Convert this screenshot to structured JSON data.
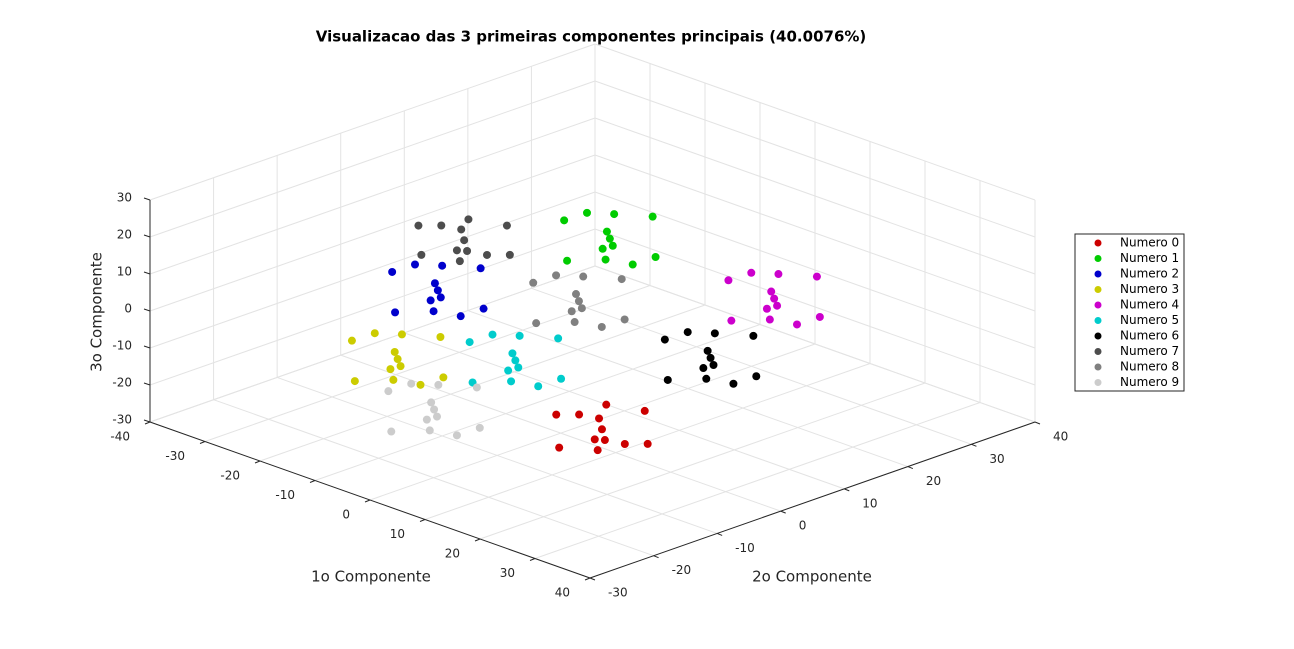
{
  "chart_data": {
    "type": "scatter3d",
    "title": "Visualizacao das 3 primeiras componentes principais (40.0076%)",
    "x_label": "1o Componente",
    "y_label": "2o Componente",
    "z_label": "3o Componente",
    "xlim": [
      -40,
      40
    ],
    "ylim": [
      -30,
      40
    ],
    "zlim": [
      -30,
      30
    ],
    "xticks": [
      -40,
      -30,
      -20,
      -10,
      0,
      10,
      20,
      30,
      40
    ],
    "yticks": [
      -30,
      -20,
      -10,
      0,
      10,
      20,
      30,
      40
    ],
    "zticks": [
      -30,
      -20,
      -10,
      0,
      10,
      20,
      30
    ],
    "grid": true,
    "legend": "right",
    "series": [
      {
        "name": "Numero 0",
        "color": "#cc0000",
        "x": [
          7.5,
          11.5,
          3.5,
          13.5,
          1.5,
          9.5,
          5.5,
          12.5,
          2.5,
          10.5,
          4.5,
          8.5
        ],
        "y": [
          0,
          -3,
          3,
          2,
          -2,
          5,
          -5,
          -5,
          5,
          1,
          -1,
          -2
        ],
        "z": [
          -25,
          -24,
          -26,
          -27,
          -23,
          -22,
          -28,
          -25,
          -24,
          -28,
          -22,
          -26
        ]
      },
      {
        "name": "Numero 1",
        "color": "#00cc00",
        "x": [
          2,
          6,
          -2,
          8,
          -4,
          4,
          0,
          7,
          -3,
          5,
          -1,
          3
        ],
        "y": [
          6,
          3,
          9,
          8,
          4,
          11,
          1,
          1,
          11,
          7,
          5,
          4
        ],
        "z": [
          20,
          22,
          18,
          17,
          23,
          24,
          16,
          20,
          21,
          14,
          26,
          19
        ]
      },
      {
        "name": "Numero 2",
        "color": "#0000cc",
        "x": [
          -5,
          -1,
          -9,
          1,
          -11,
          -3,
          -7,
          0,
          -10,
          -2,
          -8,
          -4
        ],
        "y": [
          -15,
          -18,
          -12,
          -13,
          -17,
          -10,
          -20,
          -20,
          -10,
          -14,
          -16,
          -17
        ],
        "z": [
          15,
          17,
          13,
          12,
          18,
          19,
          11,
          15,
          16,
          9,
          21,
          14
        ]
      },
      {
        "name": "Numero 3",
        "color": "#cccc00",
        "x": [
          -10,
          -6,
          -14,
          -4,
          -16,
          -8,
          -12,
          -5,
          -15,
          -7,
          -13,
          -9
        ],
        "y": [
          -17,
          -20,
          -14,
          -15,
          -19,
          -12,
          -22,
          -22,
          -12,
          -16,
          -18,
          -19
        ],
        "z": [
          -5,
          -3,
          -7,
          -8,
          -2,
          -1,
          -9,
          -5,
          -4,
          -11,
          1,
          -6
        ]
      },
      {
        "name": "Numero 4",
        "color": "#cc00cc",
        "x": [
          18,
          22,
          14,
          24,
          12,
          20,
          16,
          23,
          13,
          21,
          15,
          19
        ],
        "y": [
          18,
          15,
          21,
          20,
          16,
          23,
          13,
          13,
          23,
          19,
          17,
          16
        ],
        "z": [
          5,
          7,
          3,
          2,
          8,
          9,
          1,
          5,
          6,
          -1,
          11,
          4
        ]
      },
      {
        "name": "Numero 5",
        "color": "#00cccc",
        "x": [
          1,
          5,
          -3,
          7,
          -5,
          3,
          -1,
          6,
          -4,
          4,
          -2,
          2
        ],
        "y": [
          -8,
          -11,
          -5,
          -6,
          -10,
          -3,
          -13,
          -13,
          -3,
          -7,
          -9,
          -10
        ],
        "z": [
          -5,
          -3,
          -7,
          -8,
          -2,
          -1,
          -9,
          -5,
          -4,
          -11,
          1,
          -6
        ]
      },
      {
        "name": "Numero 6",
        "color": "#000000",
        "x": [
          18,
          22,
          14,
          24,
          12,
          20,
          16,
          23,
          13,
          21,
          15,
          19
        ],
        "y": [
          8,
          5,
          11,
          10,
          6,
          13,
          3,
          3,
          13,
          9,
          7,
          6
        ],
        "z": [
          -5,
          -3,
          -7,
          -8,
          -2,
          -1,
          -9,
          -5,
          -4,
          -11,
          1,
          -6
        ]
      },
      {
        "name": "Numero 7",
        "color": "#4d4d4d",
        "x": [
          -6,
          -2,
          -10,
          0,
          -12,
          -4,
          -8,
          -1,
          -11,
          -3,
          -9,
          -5
        ],
        "y": [
          -10,
          -13,
          -7,
          -8,
          -12,
          -5,
          -15,
          -15,
          -5,
          -9,
          -11,
          -12
        ],
        "z": [
          25,
          26,
          24,
          23,
          27,
          27,
          23,
          25,
          25,
          22,
          28,
          24
        ]
      },
      {
        "name": "Numero 8",
        "color": "#808080",
        "x": [
          1,
          5,
          -3,
          7,
          -5,
          3,
          -1,
          6,
          -4,
          4,
          -2,
          2
        ],
        "y": [
          2,
          -1,
          5,
          4,
          0,
          7,
          -3,
          -3,
          7,
          3,
          1,
          0
        ],
        "z": [
          5,
          7,
          3,
          2,
          8,
          9,
          1,
          5,
          6,
          -1,
          11,
          4
        ]
      },
      {
        "name": "Numero 9",
        "color": "#cccccc",
        "x": [
          -8,
          -4,
          -12,
          -2,
          -14,
          -6,
          -10,
          -3,
          -13,
          -5,
          -11,
          -7
        ],
        "y": [
          -13,
          -16,
          -10,
          -11,
          -15,
          -8,
          -18,
          -18,
          -8,
          -12,
          -14,
          -15
        ],
        "z": [
          -20,
          -18,
          -22,
          -23,
          -17,
          -16,
          -24,
          -20,
          -19,
          -26,
          -14,
          -21
        ]
      }
    ]
  }
}
